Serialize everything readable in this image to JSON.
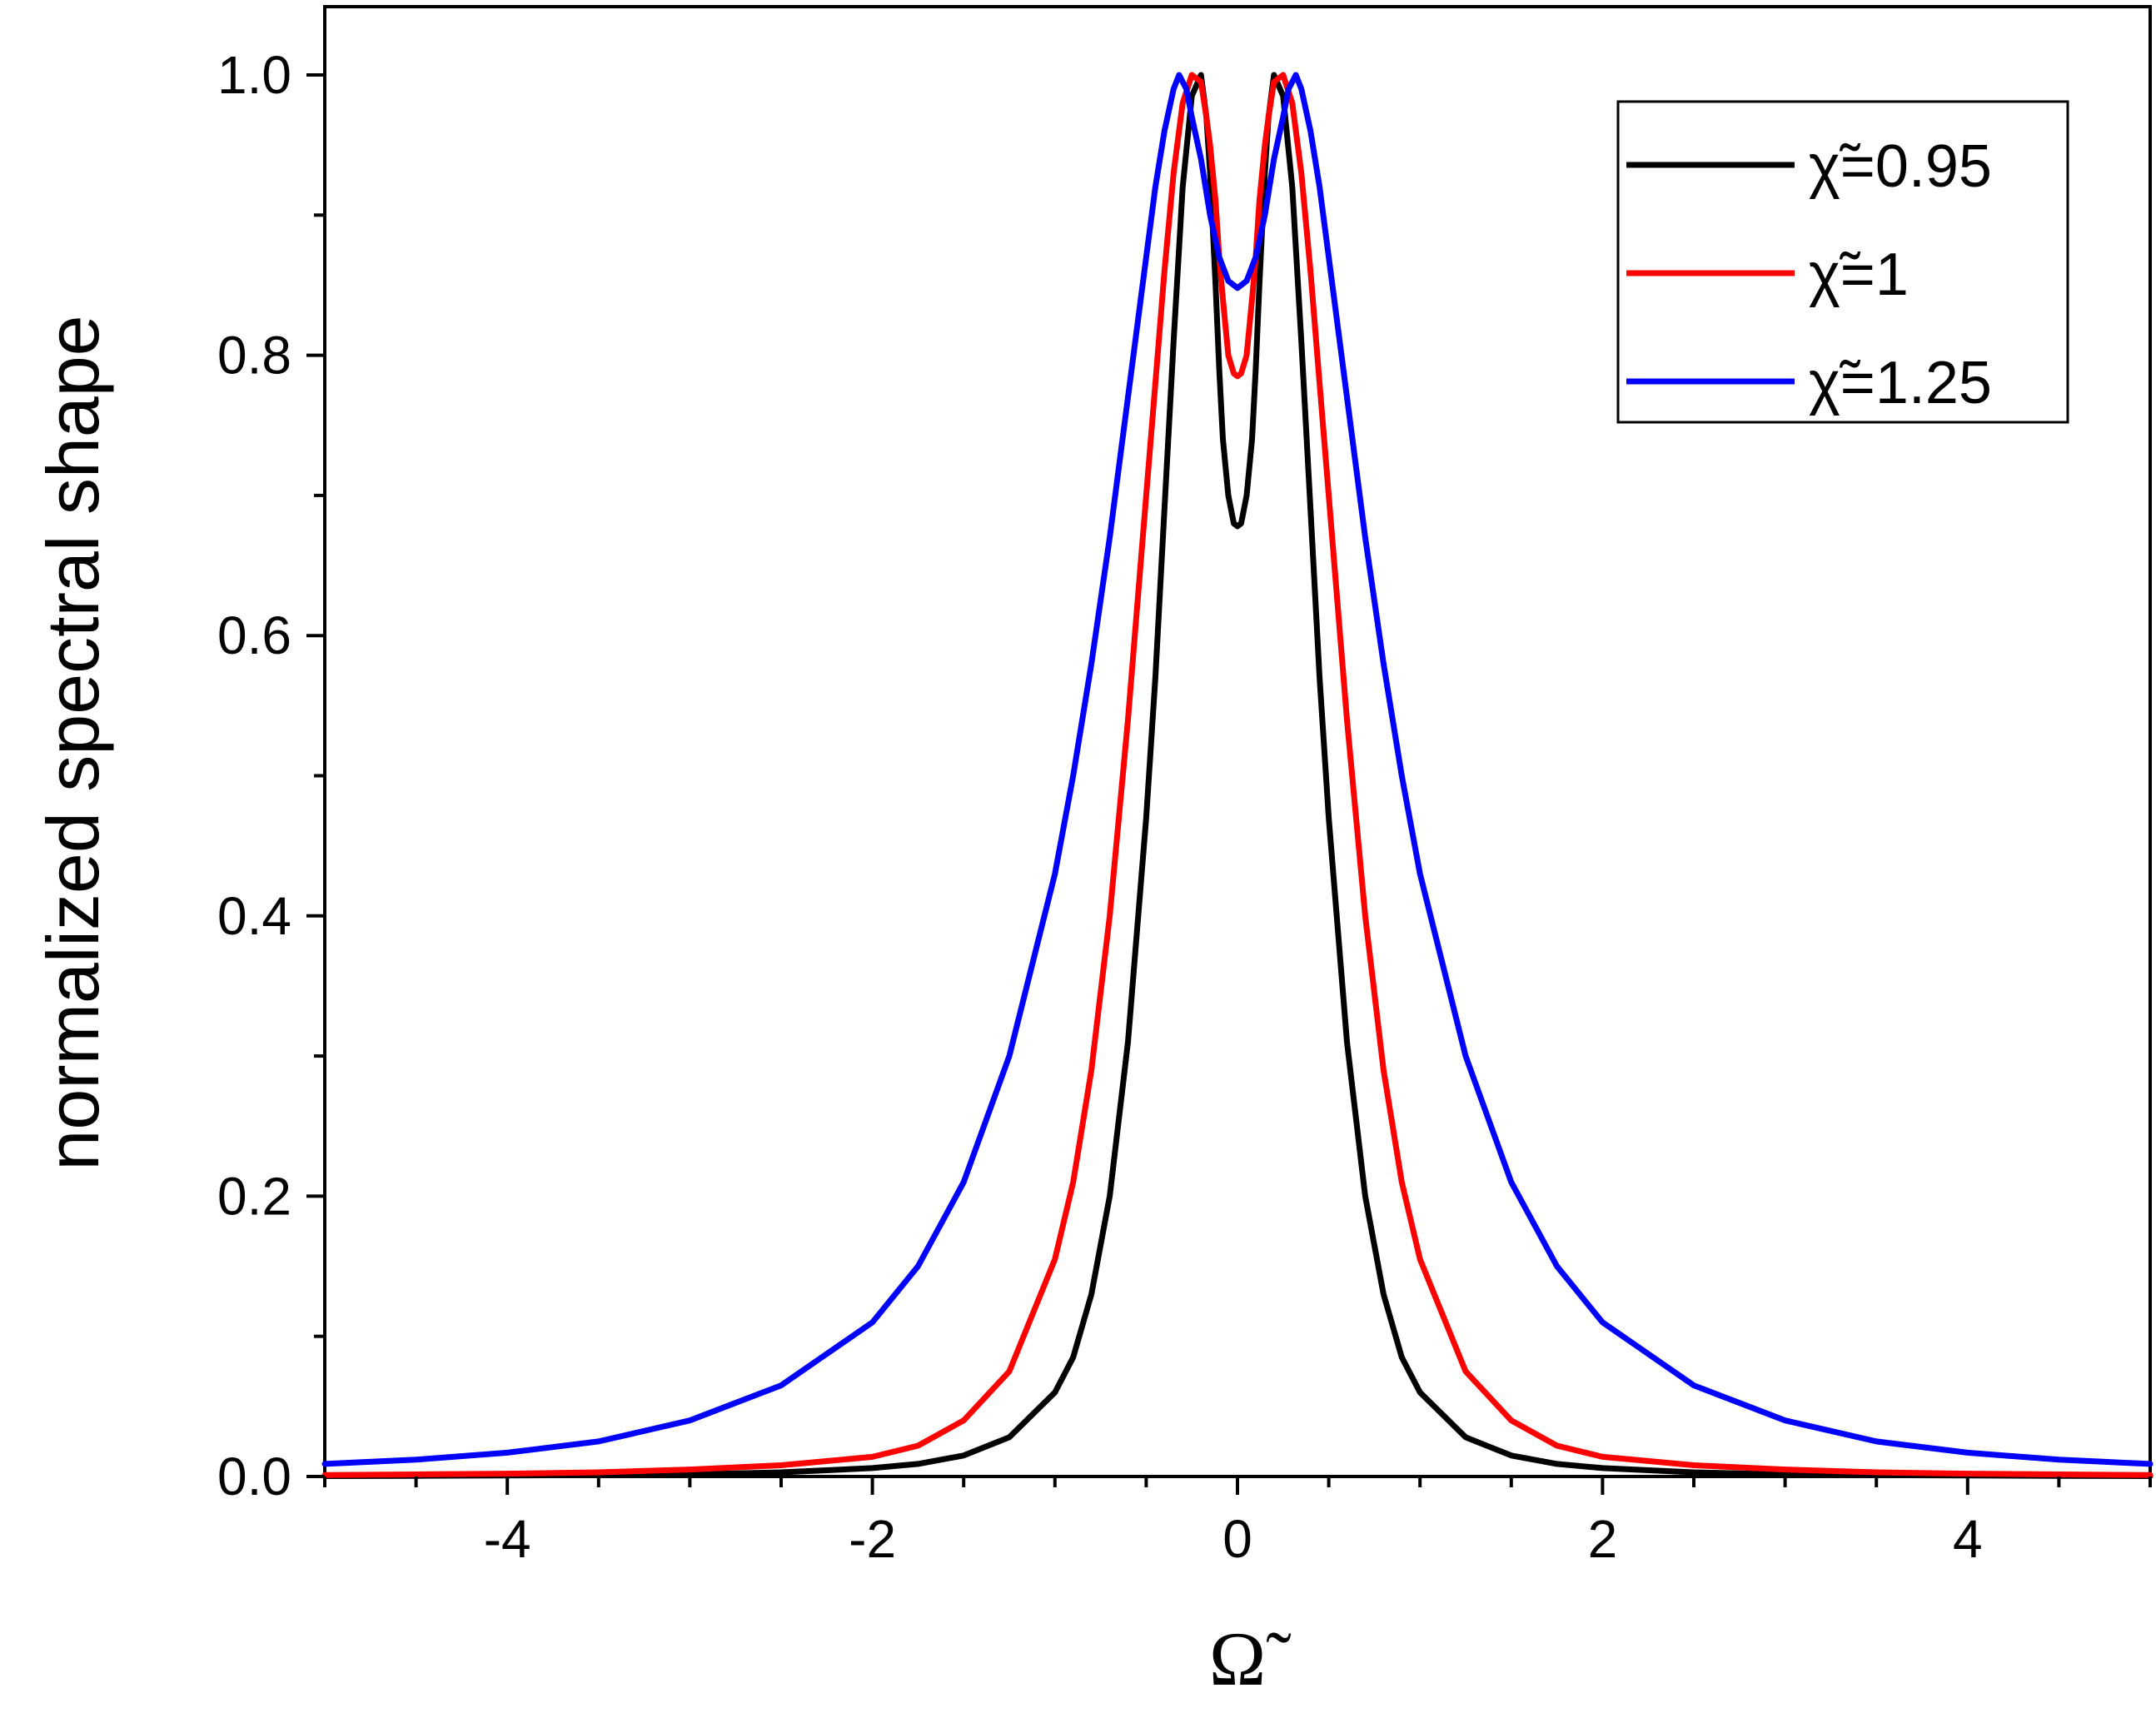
{
  "chart_data": {
    "type": "line",
    "title": "",
    "xlabel": "Ω̃",
    "ylabel": "normalized spectral shape",
    "xlim": [
      -5,
      5
    ],
    "ylim": [
      0,
      1.05
    ],
    "x_ticks": [
      "-4",
      "-2",
      "0",
      "2",
      "4"
    ],
    "y_ticks": [
      "0.0",
      "0.2",
      "0.4",
      "0.6",
      "0.8",
      "1.0"
    ],
    "grid": false,
    "legend_position": "top-right",
    "series": [
      {
        "name": "χ̃=0.95",
        "color": "#000000",
        "x": [
          -5,
          -4.5,
          -4,
          -3.5,
          -3,
          -2.5,
          -2,
          -1.75,
          -1.5,
          -1.25,
          -1,
          -0.9,
          -0.8,
          -0.7,
          -0.6,
          -0.5,
          -0.45,
          -0.4,
          -0.35,
          -0.3,
          -0.25,
          -0.2,
          -0.17,
          -0.15,
          -0.12,
          -0.1,
          -0.08,
          -0.05,
          -0.02,
          0,
          0.02,
          0.05,
          0.08,
          0.1,
          0.12,
          0.15,
          0.17,
          0.2,
          0.25,
          0.3,
          0.35,
          0.4,
          0.45,
          0.5,
          0.6,
          0.7,
          0.8,
          0.9,
          1,
          1.25,
          1.5,
          1.75,
          2,
          2.5,
          3,
          3.5,
          4,
          4.5,
          5
        ],
        "y": [
          0.0003,
          0.0005,
          0.0007,
          0.001,
          0.0015,
          0.003,
          0.006,
          0.009,
          0.015,
          0.028,
          0.06,
          0.085,
          0.13,
          0.2,
          0.31,
          0.47,
          0.57,
          0.69,
          0.81,
          0.92,
          0.985,
          1.0,
          0.97,
          0.93,
          0.85,
          0.79,
          0.74,
          0.7,
          0.68,
          0.678,
          0.68,
          0.7,
          0.74,
          0.79,
          0.85,
          0.93,
          0.97,
          1.0,
          0.985,
          0.92,
          0.81,
          0.69,
          0.57,
          0.47,
          0.31,
          0.2,
          0.13,
          0.085,
          0.06,
          0.028,
          0.015,
          0.009,
          0.006,
          0.003,
          0.0015,
          0.001,
          0.0007,
          0.0005,
          0.0003
        ]
      },
      {
        "name": "χ̃=1",
        "color": "#ff0000",
        "x": [
          -5,
          -4.5,
          -4,
          -3.5,
          -3,
          -2.5,
          -2,
          -1.75,
          -1.5,
          -1.25,
          -1,
          -0.9,
          -0.8,
          -0.7,
          -0.6,
          -0.5,
          -0.45,
          -0.4,
          -0.35,
          -0.3,
          -0.25,
          -0.2,
          -0.17,
          -0.15,
          -0.12,
          -0.1,
          -0.08,
          -0.05,
          -0.02,
          0,
          0.02,
          0.05,
          0.08,
          0.1,
          0.12,
          0.15,
          0.17,
          0.2,
          0.25,
          0.3,
          0.35,
          0.4,
          0.45,
          0.5,
          0.6,
          0.7,
          0.8,
          0.9,
          1,
          1.25,
          1.5,
          1.75,
          2,
          2.5,
          3,
          3.5,
          4,
          4.5,
          5
        ],
        "y": [
          0.001,
          0.0015,
          0.002,
          0.003,
          0.005,
          0.008,
          0.014,
          0.022,
          0.04,
          0.075,
          0.155,
          0.21,
          0.29,
          0.4,
          0.54,
          0.7,
          0.78,
          0.86,
          0.93,
          0.98,
          1.0,
          0.995,
          0.97,
          0.95,
          0.91,
          0.87,
          0.84,
          0.8,
          0.787,
          0.785,
          0.787,
          0.8,
          0.84,
          0.87,
          0.91,
          0.95,
          0.97,
          0.995,
          1.0,
          0.98,
          0.93,
          0.86,
          0.78,
          0.7,
          0.54,
          0.4,
          0.29,
          0.21,
          0.155,
          0.075,
          0.04,
          0.022,
          0.014,
          0.008,
          0.005,
          0.003,
          0.002,
          0.0015,
          0.001
        ]
      },
      {
        "name": "χ̃=1.25",
        "color": "#0000ff",
        "x": [
          -5,
          -4.5,
          -4,
          -3.5,
          -3,
          -2.5,
          -2,
          -1.75,
          -1.5,
          -1.25,
          -1,
          -0.9,
          -0.8,
          -0.7,
          -0.6,
          -0.5,
          -0.45,
          -0.4,
          -0.35,
          -0.32,
          -0.28,
          -0.25,
          -0.2,
          -0.15,
          -0.1,
          -0.05,
          0,
          0.05,
          0.1,
          0.15,
          0.2,
          0.25,
          0.28,
          0.32,
          0.35,
          0.4,
          0.45,
          0.5,
          0.6,
          0.7,
          0.8,
          0.9,
          1,
          1.25,
          1.5,
          1.75,
          2,
          2.5,
          3,
          3.5,
          4,
          4.5,
          5
        ],
        "y": [
          0.009,
          0.012,
          0.017,
          0.025,
          0.04,
          0.065,
          0.11,
          0.15,
          0.21,
          0.3,
          0.43,
          0.5,
          0.58,
          0.67,
          0.77,
          0.87,
          0.92,
          0.96,
          0.99,
          1.0,
          0.99,
          0.97,
          0.94,
          0.9,
          0.87,
          0.853,
          0.848,
          0.853,
          0.87,
          0.9,
          0.94,
          0.97,
          0.99,
          1.0,
          0.99,
          0.96,
          0.92,
          0.87,
          0.77,
          0.67,
          0.58,
          0.5,
          0.43,
          0.3,
          0.21,
          0.15,
          0.11,
          0.065,
          0.04,
          0.025,
          0.017,
          0.012,
          0.009
        ]
      }
    ]
  }
}
